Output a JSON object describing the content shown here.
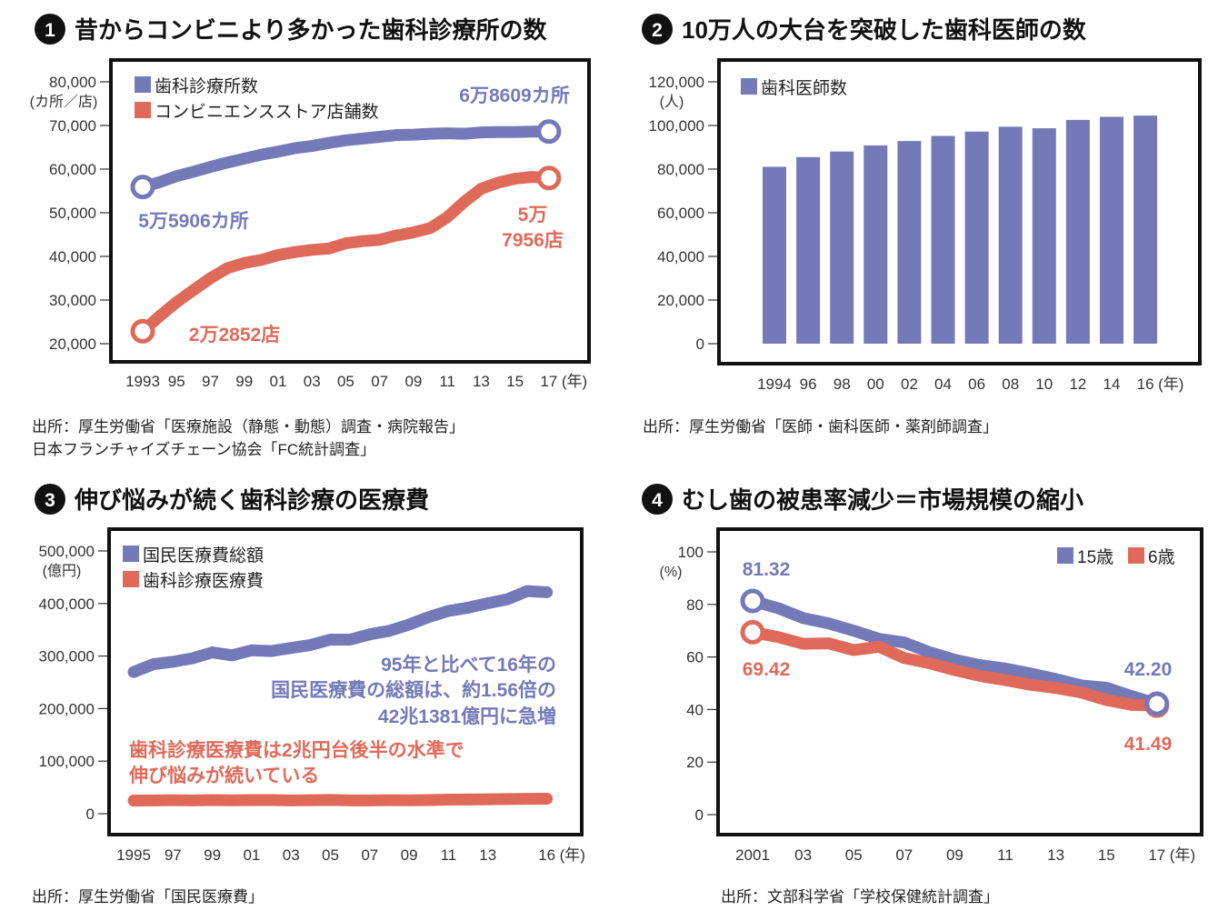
{
  "colors": {
    "blue": "#7479b8",
    "red": "#e06a5a",
    "frame": "#111111"
  },
  "chart_data": [
    {
      "type": "line",
      "number": "1",
      "title": "昔からコンビニより多かった歯科診療所の数",
      "y_unit": "(カ所／店)",
      "x_unit": "(年)",
      "ylim": [
        20000,
        80000
      ],
      "yticks": [
        20000,
        30000,
        40000,
        50000,
        60000,
        70000,
        80000
      ],
      "ytick_labels": [
        "20,000",
        "30,000",
        "40,000",
        "50,000",
        "60,000",
        "70,000",
        "80,000"
      ],
      "xticks": [
        1993,
        1995,
        1997,
        1999,
        2001,
        2003,
        2005,
        2007,
        2009,
        2011,
        2013,
        2015,
        2017
      ],
      "xtick_labels": [
        "1993",
        "95",
        "97",
        "99",
        "01",
        "03",
        "05",
        "07",
        "09",
        "11",
        "13",
        "15",
        "17"
      ],
      "x": [
        1993,
        1994,
        1995,
        1996,
        1997,
        1998,
        1999,
        2000,
        2001,
        2002,
        2003,
        2004,
        2005,
        2006,
        2007,
        2008,
        2009,
        2010,
        2011,
        2012,
        2013,
        2014,
        2015,
        2016,
        2017
      ],
      "series": [
        {
          "name": "歯科診療所数",
          "color": "#7479b8",
          "values": [
            55906,
            57000,
            58400,
            59400,
            60500,
            61500,
            62400,
            63300,
            64000,
            64800,
            65300,
            66000,
            66600,
            67000,
            67400,
            67800,
            67900,
            68100,
            68200,
            68100,
            68400,
            68500,
            68500,
            68600,
            68609
          ]
        },
        {
          "name": "コンビニエンスストア店舗数",
          "color": "#e06a5a",
          "values": [
            22852,
            26300,
            29500,
            32300,
            35000,
            37300,
            38500,
            39200,
            40300,
            41000,
            41500,
            41800,
            43000,
            43500,
            43800,
            44800,
            45500,
            46500,
            49000,
            52500,
            55500,
            56900,
            57800,
            58200,
            57956
          ]
        }
      ],
      "annotations": [
        "6万8609カ所",
        "5万5906カ所",
        "2万2852店",
        "5万",
        "7956店"
      ],
      "source": [
        "出所：厚生労働省「医療施設（静態・動態）調査・病院報告」",
        "日本フランチャイズチェーン協会「FC統計調査」"
      ]
    },
    {
      "type": "bar",
      "number": "2",
      "title": "10万人の大台を突破した歯科医師の数",
      "y_unit": "(人)",
      "x_unit": "(年)",
      "ylim": [
        0,
        120000
      ],
      "yticks": [
        0,
        20000,
        40000,
        60000,
        80000,
        100000,
        120000
      ],
      "ytick_labels": [
        "0",
        "20,000",
        "40,000",
        "60,000",
        "80,000",
        "100,000",
        "120,000"
      ],
      "categories": [
        "1994",
        "96",
        "98",
        "00",
        "02",
        "04",
        "06",
        "08",
        "10",
        "12",
        "14",
        "16"
      ],
      "series": [
        {
          "name": "歯科医師数",
          "color": "#7479b8",
          "values": [
            81055,
            85518,
            88061,
            90857,
            92874,
            95197,
            97198,
            99426,
            98723,
            102551,
            103972,
            104533
          ]
        }
      ],
      "source": [
        "出所：厚生労働省「医師・歯科医師・薬剤師調査」"
      ]
    },
    {
      "type": "line",
      "number": "3",
      "title": "伸び悩みが続く歯科診療の医療費",
      "y_unit": "(億円)",
      "x_unit": "(年)",
      "ylim": [
        0,
        500000
      ],
      "yticks": [
        0,
        100000,
        200000,
        300000,
        400000,
        500000
      ],
      "ytick_labels": [
        "0",
        "100,000",
        "200,000",
        "300,000",
        "400,000",
        "500,000"
      ],
      "xticks": [
        1995,
        1997,
        1999,
        2001,
        2003,
        2005,
        2007,
        2009,
        2011,
        2013,
        2016
      ],
      "xtick_labels": [
        "1995",
        "97",
        "99",
        "01",
        "03",
        "05",
        "07",
        "09",
        "11",
        "13",
        "16"
      ],
      "x": [
        1995,
        1996,
        1997,
        1998,
        1999,
        2000,
        2001,
        2002,
        2003,
        2004,
        2005,
        2006,
        2007,
        2008,
        2009,
        2010,
        2011,
        2012,
        2013,
        2014,
        2015,
        2016
      ],
      "series": [
        {
          "name": "国民医療費総額",
          "color": "#7479b8",
          "values": [
            269577,
            284542,
            289149,
            295823,
            307019,
            301418,
            310998,
            309507,
            315375,
            321111,
            331289,
            331276,
            341360,
            348084,
            360067,
            374202,
            385850,
            392117,
            400610,
            408071,
            423644,
            421381
          ]
        },
        {
          "name": "歯科診療医療費",
          "color": "#e06a5a",
          "values": [
            25000,
            25400,
            25700,
            25400,
            25900,
            25600,
            26000,
            25900,
            25400,
            25800,
            26100,
            25300,
            25200,
            25800,
            25600,
            26000,
            26800,
            27100,
            27400,
            27900,
            28300,
            28574
          ]
        }
      ],
      "annotations": [
        "95年と比べて16年の",
        "国民医療費の総額は、約1.56倍の",
        "42兆1381億円に急増",
        "歯科診療医療費は2兆円台後半の水準で",
        "伸び悩みが続いている"
      ],
      "source": [
        "出所：厚生労働省「国民医療費」"
      ]
    },
    {
      "type": "line",
      "number": "4",
      "title": "むし歯の被患率減少＝市場規模の縮小",
      "y_unit": "(%)",
      "x_unit": "(年)",
      "ylim": [
        0,
        100
      ],
      "yticks": [
        0,
        20,
        40,
        60,
        80,
        100
      ],
      "ytick_labels": [
        "0",
        "20",
        "40",
        "60",
        "80",
        "100"
      ],
      "xticks": [
        2001,
        2003,
        2005,
        2007,
        2009,
        2011,
        2013,
        2015,
        2017
      ],
      "xtick_labels": [
        "2001",
        "03",
        "05",
        "07",
        "09",
        "11",
        "13",
        "15",
        "17"
      ],
      "x": [
        2001,
        2002,
        2003,
        2004,
        2005,
        2006,
        2007,
        2008,
        2009,
        2010,
        2011,
        2012,
        2013,
        2014,
        2015,
        2016,
        2017
      ],
      "series": [
        {
          "name": "15歳",
          "color": "#7479b8",
          "values": [
            81.32,
            78.6,
            74.8,
            72.8,
            70.0,
            66.9,
            65.5,
            61.8,
            58.9,
            56.9,
            55.6,
            53.7,
            51.6,
            49.2,
            48.3,
            45.1,
            42.2
          ]
        },
        {
          "name": "6歳",
          "color": "#e06a5a",
          "values": [
            69.42,
            67.6,
            65.0,
            65.2,
            62.6,
            63.9,
            59.6,
            57.6,
            55.0,
            52.8,
            51.2,
            49.4,
            48.2,
            46.5,
            43.6,
            41.8,
            41.49
          ]
        }
      ],
      "annotations": [
        "81.32",
        "69.42",
        "42.20",
        "41.49"
      ],
      "source": [
        "出所：文部科学省「学校保健統計調査」"
      ]
    }
  ]
}
